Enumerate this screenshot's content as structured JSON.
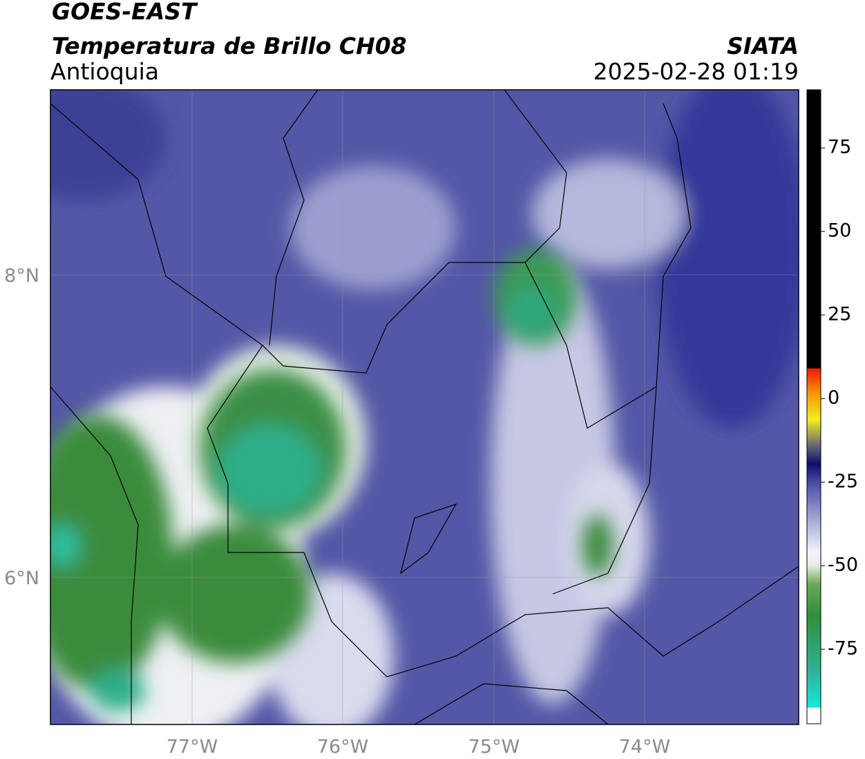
{
  "header": {
    "title": "GOES-EAST",
    "subtitle": "Temperatura de Brillo CH08",
    "region": "Antioquia",
    "source": "SIATA",
    "datetime": "2025-02-28 01:19"
  },
  "map": {
    "lat_labels": [
      "8°N",
      "6°N"
    ],
    "lon_labels": [
      "77°W",
      "76°W",
      "75°W",
      "74°W"
    ]
  },
  "colorbar": {
    "clim": [
      -97.3,
      92.4
    ],
    "ticks": [
      75,
      50,
      25,
      0,
      -25,
      -50,
      -75
    ]
  }
}
